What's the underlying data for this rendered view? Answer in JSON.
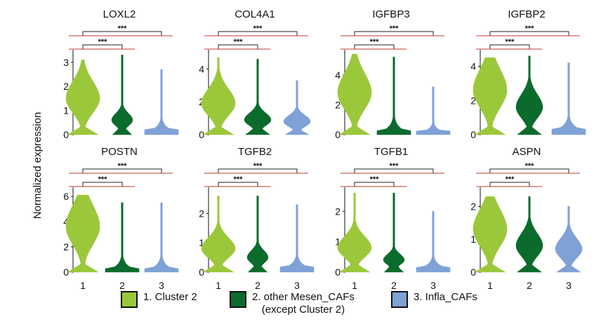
{
  "chart_data": {
    "type": "violin",
    "ylabel": "Normalized expression",
    "groups": [
      {
        "id": "1",
        "label": "1. Cluster 2",
        "color": "#9BC83A"
      },
      {
        "id": "2",
        "label": "2. other Mesen_CAFs",
        "sublabel": "(except Cluster 2)",
        "color": "#0B6B2C"
      },
      {
        "id": "3",
        "label": "3. Infla_CAFs",
        "color": "#7FA1D6"
      }
    ],
    "x_ticks": [
      "1",
      "2",
      "3"
    ],
    "significance": [
      "***",
      "***"
    ],
    "panels": [
      {
        "gene": "LOXL2",
        "y_ticks": [
          0,
          1,
          2,
          3
        ],
        "ylim": [
          0,
          3.4
        ],
        "max": [
          3.1,
          3.3,
          2.7
        ],
        "mode": [
          1.5,
          0.6,
          0.1
        ]
      },
      {
        "gene": "COL4A1",
        "y_ticks": [
          0,
          2,
          4
        ],
        "ylim": [
          0,
          5
        ],
        "max": [
          4.7,
          4.6,
          3.3
        ],
        "mode": [
          1.9,
          0.9,
          0.8
        ]
      },
      {
        "gene": "IGFBP3",
        "y_ticks": [
          0,
          2,
          4
        ],
        "ylim": [
          0,
          5.5
        ],
        "max": [
          5.4,
          5.2,
          3.2
        ],
        "mode": [
          2.8,
          0.1,
          0.1
        ]
      },
      {
        "gene": "IGFBP2",
        "y_ticks": [
          0,
          2,
          4
        ],
        "ylim": [
          0,
          4.8
        ],
        "max": [
          4.5,
          4.6,
          4.2
        ],
        "mode": [
          2.6,
          1.6,
          0.2
        ]
      },
      {
        "gene": "POSTN",
        "y_ticks": [
          0,
          2,
          4,
          6
        ],
        "ylim": [
          0,
          6.5
        ],
        "max": [
          6.1,
          5.5,
          5.5
        ],
        "mode": [
          3.6,
          0.1,
          0.1
        ]
      },
      {
        "gene": "TGFB2",
        "y_ticks": [
          0,
          1,
          2
        ],
        "ylim": [
          0,
          2.8
        ],
        "max": [
          2.6,
          2.6,
          2.3
        ],
        "mode": [
          0.8,
          0.5,
          0.1
        ]
      },
      {
        "gene": "TGFB1",
        "y_ticks": [
          0,
          1,
          2
        ],
        "ylim": [
          0,
          2.7
        ],
        "max": [
          2.6,
          2.6,
          2.0
        ],
        "mode": [
          0.8,
          0.4,
          0.1
        ]
      },
      {
        "gene": "ASPN",
        "y_ticks": [
          0,
          1,
          2
        ],
        "ylim": [
          0,
          2.5
        ],
        "max": [
          2.3,
          2.3,
          2.0
        ],
        "mode": [
          1.3,
          0.8,
          0.7
        ]
      }
    ]
  }
}
